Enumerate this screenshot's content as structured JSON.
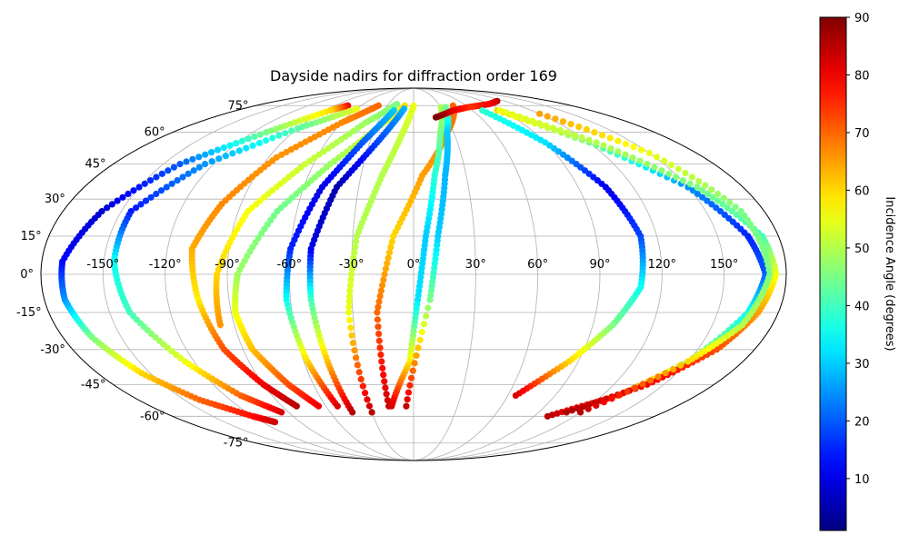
{
  "chart_data": {
    "type": "scatter",
    "projection": "mollweide",
    "title": "Dayside nadirs for diffraction order 169",
    "grid": true,
    "lon_ticks": [
      -150,
      -120,
      -90,
      -60,
      -30,
      0,
      30,
      60,
      90,
      120,
      150
    ],
    "lat_ticks": [
      -75,
      -60,
      -45,
      -30,
      -15,
      0,
      15,
      30,
      45,
      60,
      75
    ],
    "lon_tick_labels": [
      "-150°",
      "-120°",
      "-90°",
      "-60°",
      "-30°",
      "0°",
      "30°",
      "60°",
      "90°",
      "120°",
      "150°"
    ],
    "lat_tick_labels": [
      "-75°",
      "-60°",
      "-45°",
      "-30°",
      "-15°",
      "0°",
      "15°",
      "30°",
      "45°",
      "60°",
      "75°"
    ],
    "colormap": "jet",
    "colorbar": {
      "label": "Incidence Angle (degrees)",
      "range": [
        1,
        90
      ],
      "ticks": [
        10,
        20,
        30,
        40,
        50,
        60,
        70,
        80,
        90
      ],
      "tick_labels": [
        "10",
        "20",
        "30",
        "40",
        "50",
        "60",
        "70",
        "80",
        "90"
      ],
      "placement": "right"
    },
    "series": [
      {
        "lon": [
          -75,
          -85,
          -110,
          -140,
          -160,
          -170,
          -170,
          -165,
          -155,
          -140,
          -120,
          -110
        ],
        "lat": [
          75,
          72,
          60,
          45,
          25,
          5,
          -10,
          -25,
          -40,
          -52,
          -60,
          -63
        ],
        "inc": [
          80,
          60,
          45,
          20,
          8,
          12,
          25,
          45,
          60,
          70,
          78,
          83
        ]
      },
      {
        "lon": [
          -60,
          -90,
          -125,
          -145,
          -145,
          -140,
          -125,
          -110,
          -95
        ],
        "lat": [
          73,
          62,
          45,
          25,
          5,
          -15,
          -35,
          -50,
          -58
        ],
        "inc": [
          55,
          42,
          25,
          14,
          35,
          40,
          55,
          70,
          82
        ]
      },
      {
        "lon": [
          -40,
          -60,
          -85,
          -100,
          -108,
          -105,
          -100,
          -90,
          -80
        ],
        "lat": [
          75,
          65,
          48,
          28,
          10,
          -10,
          -30,
          -45,
          -55
        ],
        "inc": [
          70,
          67,
          66,
          67,
          64,
          58,
          72,
          80,
          85
        ]
      },
      {
        "lon": [
          -20,
          -40,
          -65,
          -85,
          -95,
          -97
        ],
        "lat": [
          76,
          65,
          45,
          25,
          0,
          -20
        ],
        "inc": [
          45,
          48,
          52,
          56,
          60,
          66
        ]
      },
      {
        "lon": [
          -10,
          -25,
          -50,
          -70,
          -85,
          -88,
          -85,
          -75,
          -65
        ],
        "lat": [
          75,
          65,
          45,
          25,
          0,
          -15,
          -30,
          -45,
          -55
        ],
        "inc": [
          60,
          55,
          48,
          44,
          48,
          55,
          62,
          72,
          80
        ]
      },
      {
        "lon": [
          -20,
          -35,
          -50,
          -60,
          -62,
          -58,
          -52
        ],
        "lat": [
          72,
          55,
          35,
          10,
          -10,
          -35,
          -55
        ],
        "inc": [
          30,
          20,
          10,
          15,
          35,
          60,
          82
        ]
      },
      {
        "lon": [
          -10,
          -25,
          -42,
          -50,
          -50,
          -47,
          -44
        ],
        "lat": [
          73,
          55,
          35,
          10,
          -10,
          -35,
          -58
        ],
        "inc": [
          28,
          18,
          5,
          10,
          40,
          62,
          85
        ]
      },
      {
        "lon": [
          0,
          -8,
          -18,
          -28,
          -32,
          -30
        ],
        "lat": [
          75,
          60,
          40,
          15,
          -15,
          -58
        ],
        "inc": [
          55,
          52,
          50,
          50,
          55,
          85
        ]
      },
      {
        "lon": [
          45,
          25,
          5,
          -10,
          -18,
          -17
        ],
        "lat": [
          75,
          60,
          40,
          15,
          -15,
          -55
        ],
        "inc": [
          70,
          68,
          65,
          60,
          70,
          84
        ]
      },
      {
        "lon": [
          30,
          20,
          12,
          6,
          2,
          -2,
          -15
        ],
        "lat": [
          74,
          60,
          40,
          15,
          -10,
          -35,
          -55
        ],
        "inc": [
          50,
          45,
          38,
          30,
          32,
          58,
          82
        ]
      },
      {
        "lon": [
          35,
          25,
          18,
          12,
          8,
          -5
        ],
        "lat": [
          74,
          60,
          40,
          15,
          -10,
          -55
        ],
        "inc": [
          45,
          30,
          28,
          30,
          45,
          84
        ]
      },
      {
        "lon": [
          110,
          90,
          60,
          40,
          20
        ],
        "lat": [
          78,
          76,
          74,
          72,
          68
        ],
        "inc": [
          85,
          80,
          75,
          80,
          90
        ]
      },
      {
        "lon": [
          70,
          90,
          105,
          112,
          110,
          100,
          85,
          65
        ],
        "lat": [
          72,
          55,
          35,
          15,
          -5,
          -20,
          -35,
          -50
        ],
        "inc": [
          38,
          32,
          10,
          18,
          35,
          45,
          60,
          82
        ]
      },
      {
        "lon": [
          85,
          120,
          150,
          165,
          170,
          165,
          150,
          130,
          100
        ],
        "lat": [
          72,
          55,
          35,
          15,
          0,
          -15,
          -35,
          -50,
          -60
        ],
        "inc": [
          60,
          45,
          25,
          15,
          20,
          35,
          48,
          70,
          85
        ]
      },
      {
        "lon": [
          88,
          125,
          155,
          172,
          175,
          170,
          160,
          140,
          110
        ],
        "lat": [
          72,
          55,
          35,
          15,
          0,
          -15,
          -30,
          -45,
          -58
        ],
        "inc": [
          55,
          50,
          45,
          40,
          55,
          65,
          72,
          80,
          86
        ]
      },
      {
        "lon": [
          120,
          150,
          168,
          172,
          165,
          150,
          120
        ],
        "lat": [
          70,
          50,
          25,
          0,
          -20,
          -35,
          -58
        ],
        "inc": [
          65,
          55,
          45,
          45,
          50,
          60,
          85
        ]
      }
    ]
  }
}
